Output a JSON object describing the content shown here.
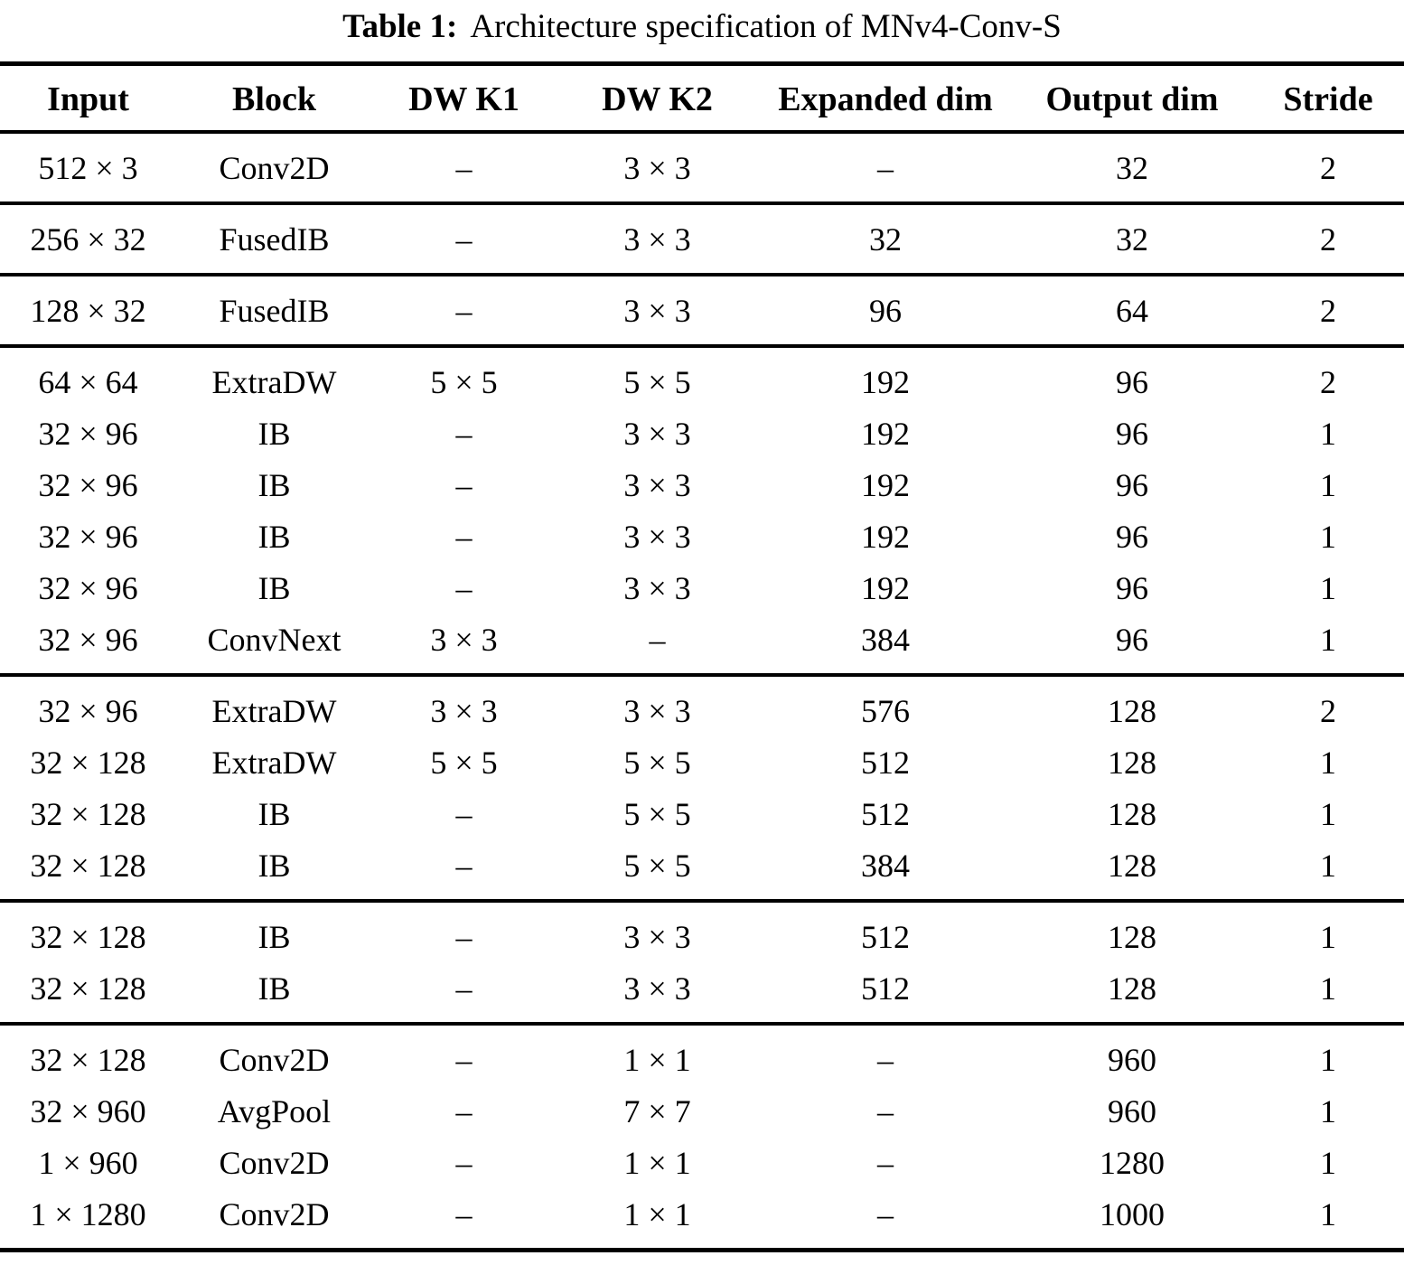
{
  "title": {
    "label": "Table 1:",
    "text": "Architecture specification of MNv4-Conv-S"
  },
  "table": {
    "columns": [
      "Input",
      "Block",
      "DW K1",
      "DW K2",
      "Expanded dim",
      "Output dim",
      "Stride"
    ],
    "groups": [
      {
        "rows": [
          [
            "512 × 3",
            "Conv2D",
            "–",
            "3 × 3",
            "–",
            "32",
            "2"
          ]
        ]
      },
      {
        "rows": [
          [
            "256 × 32",
            "FusedIB",
            "–",
            "3 × 3",
            "32",
            "32",
            "2"
          ]
        ]
      },
      {
        "rows": [
          [
            "128 × 32",
            "FusedIB",
            "–",
            "3 × 3",
            "96",
            "64",
            "2"
          ]
        ]
      },
      {
        "rows": [
          [
            "64 × 64",
            "ExtraDW",
            "5 × 5",
            "5 × 5",
            "192",
            "96",
            "2"
          ],
          [
            "32 × 96",
            "IB",
            "–",
            "3 × 3",
            "192",
            "96",
            "1"
          ],
          [
            "32 × 96",
            "IB",
            "–",
            "3 × 3",
            "192",
            "96",
            "1"
          ],
          [
            "32 × 96",
            "IB",
            "–",
            "3 × 3",
            "192",
            "96",
            "1"
          ],
          [
            "32 × 96",
            "IB",
            "–",
            "3 × 3",
            "192",
            "96",
            "1"
          ],
          [
            "32 × 96",
            "ConvNext",
            "3 × 3",
            "–",
            "384",
            "96",
            "1"
          ]
        ]
      },
      {
        "rows": [
          [
            "32 × 96",
            "ExtraDW",
            "3 × 3",
            "3 × 3",
            "576",
            "128",
            "2"
          ],
          [
            "32 × 128",
            "ExtraDW",
            "5 × 5",
            "5 × 5",
            "512",
            "128",
            "1"
          ],
          [
            "32 × 128",
            "IB",
            "–",
            "5 × 5",
            "512",
            "128",
            "1"
          ],
          [
            "32 × 128",
            "IB",
            "–",
            "5 × 5",
            "384",
            "128",
            "1"
          ]
        ]
      },
      {
        "rows": [
          [
            "32 × 128",
            "IB",
            "–",
            "3 × 3",
            "512",
            "128",
            "1"
          ],
          [
            "32 × 128",
            "IB",
            "–",
            "3 × 3",
            "512",
            "128",
            "1"
          ]
        ]
      },
      {
        "rows": [
          [
            "32 × 128",
            "Conv2D",
            "–",
            "1 × 1",
            "–",
            "960",
            "1"
          ],
          [
            "32 × 960",
            "AvgPool",
            "–",
            "7 × 7",
            "–",
            "960",
            "1"
          ],
          [
            "1 × 960",
            "Conv2D",
            "–",
            "1 × 1",
            "–",
            "1280",
            "1"
          ],
          [
            "1 × 1280",
            "Conv2D",
            "–",
            "1 × 1",
            "–",
            "1000",
            "1"
          ]
        ]
      }
    ]
  },
  "colors": {
    "text": "#000000",
    "background": "#ffffff",
    "rule": "#000000"
  }
}
